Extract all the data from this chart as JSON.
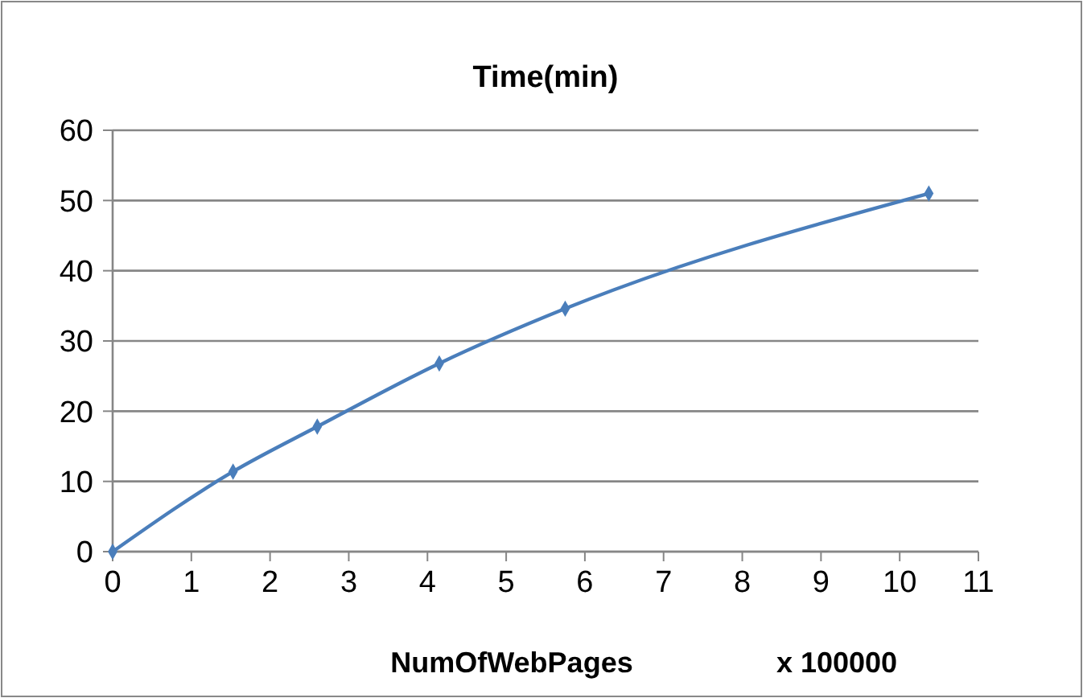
{
  "chart_data": {
    "type": "line",
    "title": "Time(min)",
    "xlabel": "NumOfWebPages",
    "annotations": [
      "x 100000"
    ],
    "x": [
      0,
      1.53,
      2.6,
      4.15,
      5.75,
      10.37
    ],
    "series": [
      {
        "color": "#4a7ebb",
        "values": [
          0,
          11.4,
          17.8,
          26.8,
          34.6,
          51
        ]
      }
    ],
    "xlim": [
      0,
      11
    ],
    "xticks": [
      0,
      1,
      2,
      3,
      4,
      5,
      6,
      7,
      8,
      9,
      10,
      11
    ],
    "ylim": [
      0,
      60
    ],
    "yticks": [
      0,
      10,
      20,
      30,
      40,
      50,
      60
    ],
    "grid": "y",
    "marker": "diamond",
    "line_style": "solid"
  }
}
